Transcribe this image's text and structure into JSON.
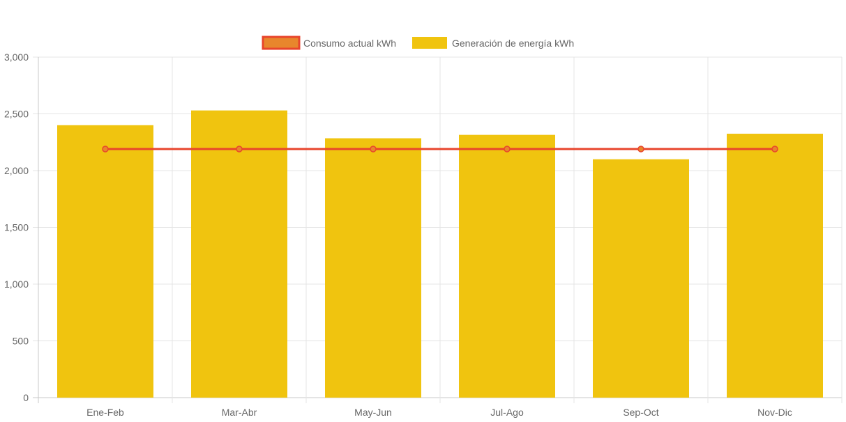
{
  "chart_data": {
    "type": "bar",
    "title": "",
    "xlabel": "",
    "ylabel": "",
    "categories": [
      "Ene-Feb",
      "Mar-Abr",
      "May-Jun",
      "Jul-Ago",
      "Sep-Oct",
      "Nov-Dic"
    ],
    "ylim": [
      0,
      3000
    ],
    "yticks": [
      "0",
      "500",
      "1,000",
      "1,500",
      "2,000",
      "2,500",
      "3,000"
    ],
    "grid": true,
    "legend_position": "top-center",
    "series": [
      {
        "name": "Consumo actual kWh",
        "type": "line",
        "color": "#e8452c",
        "fill": "#e8862c",
        "values": [
          2190,
          2190,
          2190,
          2190,
          2190,
          2190
        ]
      },
      {
        "name": "Generación de energía kWh",
        "type": "bar",
        "color": "#f0c40f",
        "values": [
          2400,
          2530,
          2285,
          2315,
          2100,
          2325
        ]
      }
    ]
  }
}
